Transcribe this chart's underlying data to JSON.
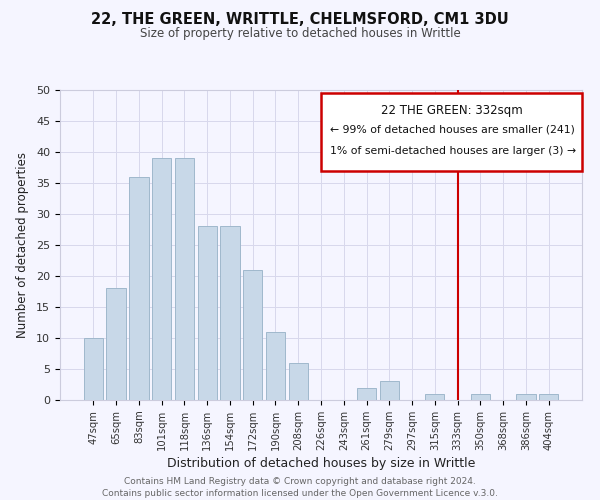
{
  "title": "22, THE GREEN, WRITTLE, CHELMSFORD, CM1 3DU",
  "subtitle": "Size of property relative to detached houses in Writtle",
  "xlabel": "Distribution of detached houses by size in Writtle",
  "ylabel": "Number of detached properties",
  "bar_labels": [
    "47sqm",
    "65sqm",
    "83sqm",
    "101sqm",
    "118sqm",
    "136sqm",
    "154sqm",
    "172sqm",
    "190sqm",
    "208sqm",
    "226sqm",
    "243sqm",
    "261sqm",
    "279sqm",
    "297sqm",
    "315sqm",
    "333sqm",
    "350sqm",
    "368sqm",
    "386sqm",
    "404sqm"
  ],
  "bar_values": [
    10,
    18,
    36,
    39,
    39,
    28,
    28,
    21,
    11,
    6,
    0,
    0,
    2,
    3,
    0,
    1,
    0,
    1,
    0,
    1,
    1
  ],
  "bar_color": "#c8d8e8",
  "bar_edge_color": "#a0b8cc",
  "ylim": [
    0,
    50
  ],
  "yticks": [
    0,
    5,
    10,
    15,
    20,
    25,
    30,
    35,
    40,
    45,
    50
  ],
  "property_line_x_label": "333sqm",
  "property_line_color": "#cc0000",
  "legend_title": "22 THE GREEN: 332sqm",
  "legend_line1": "← 99% of detached houses are smaller (241)",
  "legend_line2": "1% of semi-detached houses are larger (3) →",
  "footer_line1": "Contains HM Land Registry data © Crown copyright and database right 2024.",
  "footer_line2": "Contains public sector information licensed under the Open Government Licence v.3.0.",
  "background_color": "#f5f5ff",
  "grid_color": "#d8d8ec"
}
